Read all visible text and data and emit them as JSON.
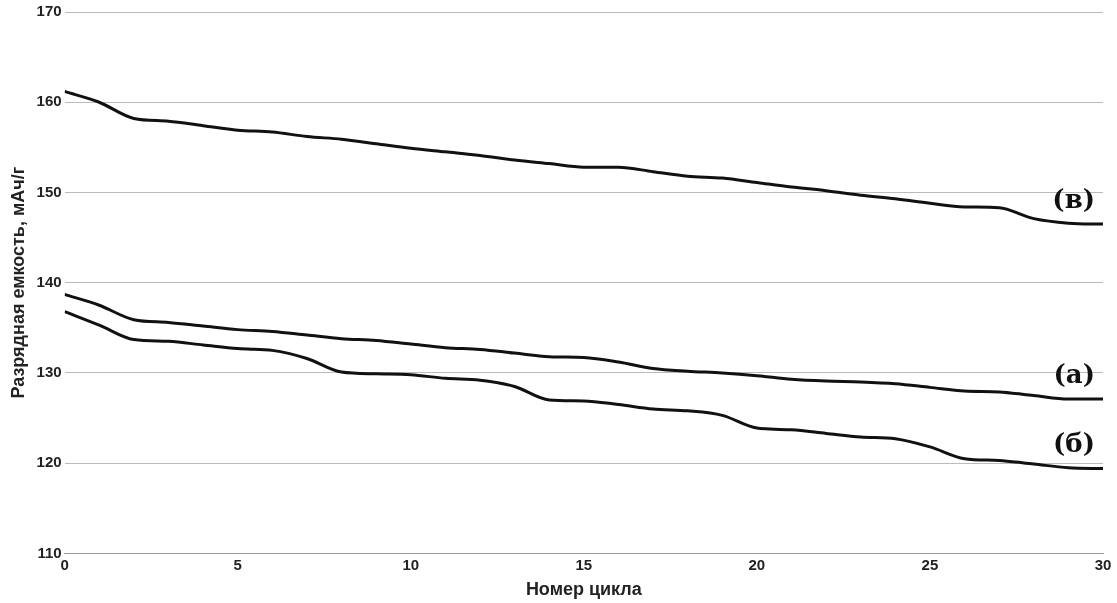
{
  "chart_data": {
    "type": "line",
    "xlabel": "Номер цикла",
    "ylabel": "Разрядная емкость, мАч/г",
    "x": [
      0,
      1,
      2,
      3,
      4,
      5,
      6,
      7,
      8,
      9,
      10,
      11,
      12,
      13,
      14,
      15,
      16,
      17,
      18,
      19,
      20,
      21,
      22,
      23,
      24,
      25,
      26,
      27,
      28,
      29,
      30
    ],
    "series": [
      {
        "name": "(в)",
        "color": "#111111",
        "values": [
          161.2,
          160,
          158.2,
          157.9,
          157.4,
          156.9,
          156.7,
          156.2,
          155.9,
          155.4,
          154.9,
          154.5,
          154.1,
          153.6,
          153.2,
          152.8,
          152.8,
          152.3,
          151.8,
          151.6,
          151.1,
          150.6,
          150.2,
          149.7,
          149.3,
          148.8,
          148.4,
          148.3,
          147.1,
          146.6,
          146.5
        ]
      },
      {
        "name": "(а)",
        "color": "#111111",
        "values": [
          138.7,
          137.5,
          135.9,
          135.6,
          135.2,
          134.8,
          134.6,
          134.2,
          133.8,
          133.6,
          133.2,
          132.8,
          132.6,
          132.2,
          131.8,
          131.7,
          131.2,
          130.5,
          130.2,
          130,
          129.7,
          129.3,
          129.1,
          129,
          128.8,
          128.4,
          128,
          127.9,
          127.5,
          127.1,
          127.1
        ]
      },
      {
        "name": "(б)",
        "color": "#111111",
        "values": [
          136.8,
          135.3,
          133.7,
          133.5,
          133.1,
          132.7,
          132.5,
          131.6,
          130.1,
          129.9,
          129.8,
          129.4,
          129.2,
          128.5,
          127,
          126.9,
          126.5,
          126,
          125.8,
          125.3,
          123.9,
          123.7,
          123.3,
          122.9,
          122.7,
          121.8,
          120.5,
          120.3,
          119.9,
          119.5,
          119.4
        ]
      }
    ],
    "xlim": [
      0,
      30
    ],
    "xticks": [
      0,
      5,
      10,
      15,
      20,
      25,
      30
    ],
    "ylim": [
      110,
      170
    ],
    "yticks": [
      110,
      120,
      130,
      140,
      150,
      160,
      170
    ],
    "grid": "y",
    "legend": false,
    "marker": "none",
    "line_style": "solid"
  }
}
